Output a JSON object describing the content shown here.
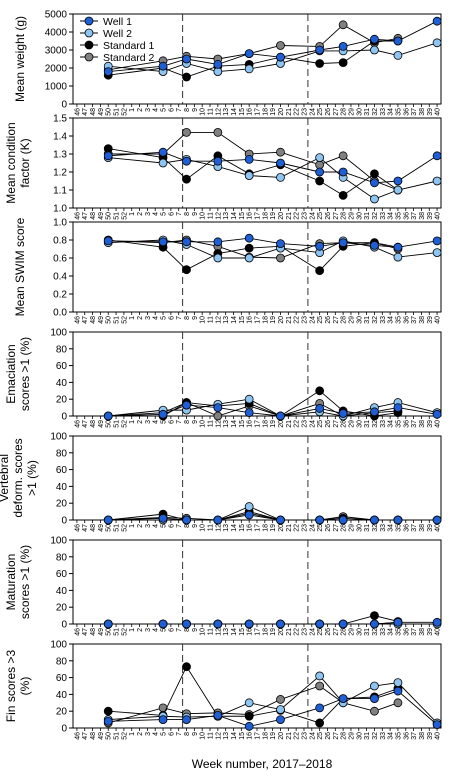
{
  "figure": {
    "xlabel": "Week number, 2017–2018",
    "week_labels": [
      "46",
      "47",
      "48",
      "49",
      "50",
      "51",
      "52",
      "1",
      "2",
      "3",
      "4",
      "5",
      "6",
      "7",
      "8",
      "9",
      "10",
      "11",
      "12",
      "13",
      "14",
      "15",
      "16",
      "17",
      "18",
      "19",
      "20",
      "21",
      "22",
      "23",
      "24",
      "25",
      "26",
      "27",
      "28",
      "29",
      "30",
      "31",
      "32",
      "33",
      "34",
      "35",
      "36",
      "37",
      "38",
      "39",
      "40"
    ],
    "vlines_at": [
      "8",
      "24"
    ],
    "legend_position": "top-left",
    "series_styles": [
      {
        "name": "Well 1",
        "color": "#1f5fd6"
      },
      {
        "name": "Well 2",
        "color": "#8ec4f2"
      },
      {
        "name": "Standard 1",
        "color": "#000000"
      },
      {
        "name": "Standard 2",
        "color": "#808080"
      }
    ],
    "legend": [
      "Well 1",
      "Well 2",
      "Standard 1",
      "Standard 2"
    ]
  },
  "chart_data": [
    {
      "type": "line",
      "ylabel": "Mean weight (g)",
      "ylim": [
        0,
        5000
      ],
      "yticks": [
        "0",
        "1000",
        "2000",
        "3000",
        "4000",
        "5000"
      ],
      "series": [
        {
          "name": "Well 1",
          "x": [
            "50",
            "5",
            "8",
            "12",
            "16",
            "20",
            "25",
            "28",
            "32",
            "35",
            "40"
          ],
          "values": [
            1800,
            2100,
            2500,
            2200,
            2800,
            2600,
            3000,
            3200,
            3600,
            3500,
            4600
          ]
        },
        {
          "name": "Well 2",
          "x": [
            "50",
            "5",
            "8",
            "12",
            "16",
            "20",
            "25",
            "28",
            "32",
            "35",
            "40"
          ],
          "values": [
            2100,
            1800,
            2250,
            1800,
            1950,
            2250,
            2950,
            2950,
            3000,
            2700,
            3400
          ]
        },
        {
          "name": "Standard 1",
          "x": [
            "50",
            "5",
            "8",
            "12",
            "16",
            "20",
            "25",
            "28",
            "32",
            "35"
          ],
          "values": [
            1600,
            2000,
            1500,
            2100,
            2200,
            2600,
            2250,
            2300,
            3500,
            3500
          ]
        },
        {
          "name": "Standard 2",
          "x": [
            "50",
            "5",
            "8",
            "12",
            "16",
            "20",
            "25",
            "28",
            "32",
            "35"
          ],
          "values": [
            1900,
            2400,
            2650,
            2500,
            2800,
            3250,
            3200,
            4400,
            3400,
            3650
          ]
        }
      ]
    },
    {
      "type": "line",
      "ylabel": "Mean condition factor (K)",
      "ylim": [
        1.0,
        1.5
      ],
      "yticks": [
        "1.0",
        "1.1",
        "1.2",
        "1.3",
        "1.4",
        "1.5"
      ],
      "series": [
        {
          "name": "Well 1",
          "x": [
            "50",
            "5",
            "8",
            "12",
            "16",
            "20",
            "25",
            "28",
            "32",
            "35",
            "40"
          ],
          "values": [
            1.29,
            1.31,
            1.26,
            1.26,
            1.27,
            1.25,
            1.2,
            1.2,
            1.14,
            1.15,
            1.29
          ]
        },
        {
          "name": "Well 2",
          "x": [
            "50",
            "5",
            "8",
            "12",
            "16",
            "20",
            "25",
            "28",
            "32",
            "35",
            "40"
          ],
          "values": [
            1.28,
            1.25,
            1.27,
            1.23,
            1.18,
            1.17,
            1.28,
            1.17,
            1.05,
            1.1,
            1.15
          ]
        },
        {
          "name": "Standard 1",
          "x": [
            "50",
            "5",
            "8",
            "12",
            "16",
            "20",
            "25",
            "28",
            "32",
            "35"
          ],
          "values": [
            1.33,
            1.28,
            1.16,
            1.29,
            1.19,
            1.24,
            1.15,
            1.07,
            1.19,
            1.1
          ]
        },
        {
          "name": "Standard 2",
          "x": [
            "50",
            "5",
            "8",
            "12",
            "16",
            "20",
            "25",
            "28",
            "32",
            "35"
          ],
          "values": [
            1.3,
            1.3,
            1.42,
            1.42,
            1.3,
            1.31,
            1.24,
            1.29,
            1.15,
            1.1
          ]
        }
      ]
    },
    {
      "type": "line",
      "ylabel": "Mean SWIM score",
      "ylim": [
        0,
        1
      ],
      "yticks": [
        "0.0",
        "0.2",
        "0.4",
        "0.6",
        "0.8",
        "1.0"
      ],
      "series": [
        {
          "name": "Well 1",
          "x": [
            "50",
            "5",
            "8",
            "12",
            "16",
            "20",
            "25",
            "28",
            "32",
            "35",
            "40"
          ],
          "values": [
            0.79,
            0.78,
            0.78,
            0.78,
            0.82,
            0.76,
            0.73,
            0.77,
            0.74,
            0.72,
            0.79
          ]
        },
        {
          "name": "Well 2",
          "x": [
            "50",
            "5",
            "8",
            "12",
            "16",
            "20",
            "25",
            "28",
            "32",
            "35",
            "40"
          ],
          "values": [
            0.77,
            0.8,
            0.75,
            0.6,
            0.6,
            0.71,
            0.66,
            0.79,
            0.72,
            0.61,
            0.66
          ]
        },
        {
          "name": "Standard 1",
          "x": [
            "50",
            "5",
            "8",
            "12",
            "16",
            "20",
            "25",
            "28",
            "32",
            "35"
          ],
          "values": [
            0.8,
            0.72,
            0.47,
            0.65,
            0.71,
            0.73,
            0.46,
            0.73,
            0.77,
            0.72
          ]
        },
        {
          "name": "Standard 2",
          "x": [
            "50",
            "5",
            "8",
            "12",
            "16",
            "20",
            "25",
            "28",
            "32",
            "35"
          ],
          "values": [
            0.79,
            0.77,
            0.8,
            0.73,
            0.61,
            0.6,
            0.76,
            0.77,
            0.77,
            0.7
          ]
        }
      ]
    },
    {
      "type": "line",
      "ylabel": "Emaciation scores >1 (%)",
      "ylim": [
        0,
        100
      ],
      "yticks": [
        "0",
        "20",
        "40",
        "60",
        "80",
        "100"
      ],
      "series": [
        {
          "name": "Well 1",
          "x": [
            "50",
            "5",
            "8",
            "12",
            "16",
            "20",
            "25",
            "28",
            "32",
            "35",
            "40"
          ],
          "values": [
            0,
            2,
            13,
            10,
            4,
            0,
            9,
            3,
            5,
            10,
            2
          ]
        },
        {
          "name": "Well 2",
          "x": [
            "50",
            "5",
            "8",
            "12",
            "16",
            "20",
            "25",
            "28",
            "32",
            "35",
            "40"
          ],
          "values": [
            0,
            7,
            7,
            14,
            20,
            0,
            5,
            0,
            10,
            16,
            4
          ]
        },
        {
          "name": "Standard 1",
          "x": [
            "50",
            "5",
            "8",
            "12",
            "16",
            "20",
            "25",
            "28",
            "32",
            "35"
          ],
          "values": [
            0,
            0,
            16,
            12,
            15,
            0,
            30,
            6,
            0,
            4
          ]
        },
        {
          "name": "Standard 2",
          "x": [
            "50",
            "5",
            "8",
            "12",
            "16",
            "20",
            "25",
            "28",
            "32",
            "35"
          ],
          "values": [
            0,
            4,
            16,
            0,
            12,
            0,
            15,
            0,
            4,
            6
          ]
        }
      ]
    },
    {
      "type": "line",
      "ylabel": "Vertebral deform. scores >1 (%)",
      "ylim": [
        0,
        100
      ],
      "yticks": [
        "0",
        "20",
        "40",
        "60",
        "80",
        "100"
      ],
      "series": [
        {
          "name": "Well 1",
          "x": [
            "50",
            "5",
            "8",
            "12",
            "16",
            "20",
            "25",
            "28",
            "32",
            "35",
            "40"
          ],
          "values": [
            0,
            2,
            0,
            0,
            6,
            0,
            0,
            0,
            0,
            0,
            0
          ]
        },
        {
          "name": "Well 2",
          "x": [
            "50",
            "5",
            "8",
            "12",
            "16",
            "20",
            "25",
            "28",
            "32",
            "35",
            "40"
          ],
          "values": [
            0,
            0,
            0,
            0,
            16,
            0,
            0,
            0,
            0,
            0,
            0
          ]
        },
        {
          "name": "Standard 1",
          "x": [
            "50",
            "5",
            "8",
            "12",
            "16",
            "20",
            "25",
            "28",
            "32",
            "35"
          ],
          "values": [
            0,
            7,
            0,
            0,
            10,
            0,
            0,
            2,
            0,
            0
          ]
        },
        {
          "name": "Standard 2",
          "x": [
            "50",
            "5",
            "8",
            "12",
            "16",
            "20",
            "25",
            "28",
            "32",
            "35"
          ],
          "values": [
            0,
            3,
            2,
            0,
            8,
            0,
            0,
            4,
            0,
            0
          ]
        }
      ]
    },
    {
      "type": "line",
      "ylabel": "Maturation scores >1 (%)",
      "ylim": [
        0,
        100
      ],
      "yticks": [
        "0",
        "20",
        "40",
        "60",
        "80",
        "100"
      ],
      "series": [
        {
          "name": "Well 1",
          "x": [
            "50",
            "5",
            "8",
            "12",
            "16",
            "20",
            "25",
            "28",
            "32",
            "35",
            "40"
          ],
          "values": [
            0,
            0,
            0,
            0,
            0,
            0,
            0,
            0,
            0,
            2,
            2
          ]
        },
        {
          "name": "Well 2",
          "x": [
            "50",
            "5",
            "8",
            "12",
            "16",
            "20",
            "25",
            "28",
            "32",
            "35",
            "40"
          ],
          "values": [
            0,
            0,
            0,
            0,
            0,
            0,
            0,
            0,
            0,
            0,
            0
          ]
        },
        {
          "name": "Standard 1",
          "x": [
            "50",
            "5",
            "8",
            "12",
            "16",
            "20",
            "25",
            "28",
            "32",
            "35"
          ],
          "values": [
            0,
            0,
            0,
            0,
            0,
            0,
            0,
            0,
            10,
            3
          ]
        },
        {
          "name": "Standard 2",
          "x": [
            "50",
            "5",
            "8",
            "12",
            "16",
            "20",
            "25",
            "28",
            "32",
            "35"
          ],
          "values": [
            0,
            0,
            0,
            0,
            0,
            0,
            0,
            0,
            0,
            2
          ]
        }
      ]
    },
    {
      "type": "line",
      "ylabel": "Fin scores >3 (%)",
      "ylim": [
        0,
        100
      ],
      "yticks": [
        "0",
        "20",
        "40",
        "60",
        "80",
        "100"
      ],
      "series": [
        {
          "name": "Well 1",
          "x": [
            "50",
            "5",
            "8",
            "12",
            "16",
            "20",
            "25",
            "28",
            "32",
            "35",
            "40"
          ],
          "values": [
            8,
            10,
            10,
            15,
            2,
            10,
            24,
            35,
            35,
            44,
            4
          ]
        },
        {
          "name": "Well 2",
          "x": [
            "50",
            "5",
            "8",
            "12",
            "16",
            "20",
            "25",
            "28",
            "32",
            "35",
            "40"
          ],
          "values": [
            10,
            14,
            13,
            14,
            30,
            22,
            62,
            30,
            50,
            54,
            6
          ]
        },
        {
          "name": "Standard 1",
          "x": [
            "50",
            "5",
            "8",
            "12",
            "16",
            "20",
            "25",
            "28",
            "32",
            "35"
          ],
          "values": [
            20,
            15,
            73,
            14,
            14,
            21,
            6,
            35,
            37,
            47
          ]
        },
        {
          "name": "Standard 2",
          "x": [
            "50",
            "5",
            "8",
            "12",
            "16",
            "20",
            "25",
            "28",
            "32",
            "35"
          ],
          "values": [
            6,
            24,
            17,
            18,
            16,
            34,
            50,
            30,
            20,
            30
          ]
        }
      ]
    }
  ]
}
